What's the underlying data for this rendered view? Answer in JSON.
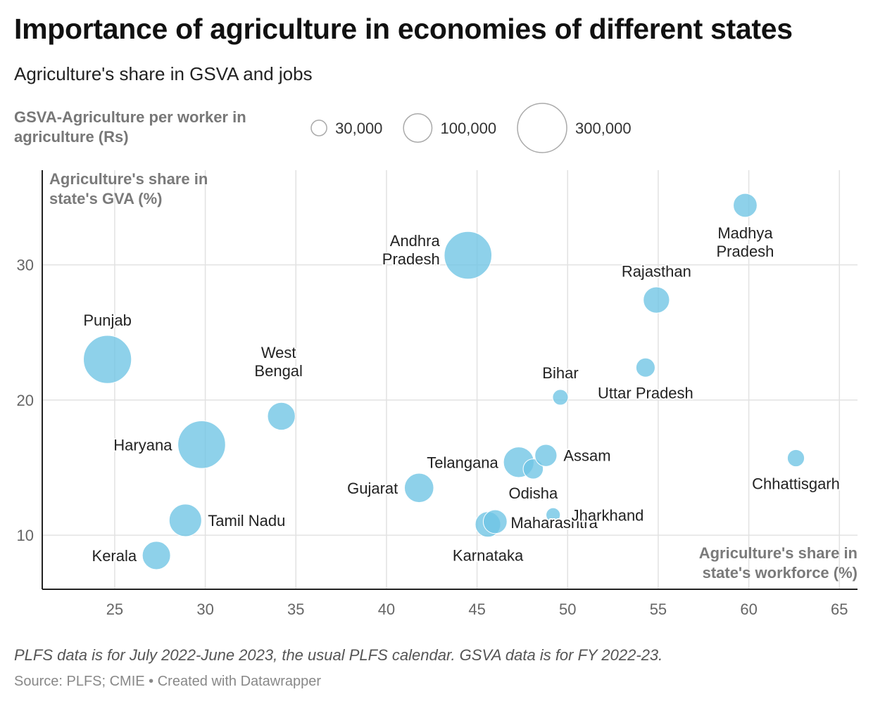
{
  "header": {
    "title": "Importance of agriculture in economies of different states",
    "subtitle": "Agriculture's share in GSVA and jobs"
  },
  "size_legend": {
    "title": "GSVA-Agriculture per worker in agriculture (Rs)",
    "items": [
      {
        "value": 30000,
        "label": "30,000"
      },
      {
        "value": 100000,
        "label": "100,000"
      },
      {
        "value": 300000,
        "label": "300,000"
      }
    ]
  },
  "chart_data": {
    "type": "scatter",
    "xlabel": "Agriculture's share in state's workforce (%)",
    "ylabel": "Agriculture's share in state's GVA (%)",
    "size_label": "GSVA-Agriculture per worker in agriculture (Rs)",
    "xlim": [
      21,
      66
    ],
    "ylim": [
      6,
      37
    ],
    "xticks": [
      25,
      30,
      35,
      40,
      45,
      50,
      55,
      60,
      65
    ],
    "yticks": [
      10,
      20,
      30
    ],
    "grid": true,
    "color": "#6ec4e4",
    "points": [
      {
        "name": "Punjab",
        "x": 24.6,
        "y": 23.0,
        "size": 285000
      },
      {
        "name": "Haryana",
        "x": 29.8,
        "y": 16.7,
        "size": 280000
      },
      {
        "name": "Tamil Nadu",
        "x": 28.9,
        "y": 11.1,
        "size": 130000
      },
      {
        "name": "Kerala",
        "x": 27.3,
        "y": 8.5,
        "size": 98000
      },
      {
        "name": "West Bengal",
        "x": 34.2,
        "y": 18.8,
        "size": 95000
      },
      {
        "name": "Andhra Pradesh",
        "x": 44.5,
        "y": 30.7,
        "size": 280000
      },
      {
        "name": "Gujarat",
        "x": 41.8,
        "y": 13.5,
        "size": 106000
      },
      {
        "name": "Telangana",
        "x": 47.3,
        "y": 15.4,
        "size": 115000
      },
      {
        "name": "Karnataka",
        "x": 45.6,
        "y": 10.8,
        "size": 80000
      },
      {
        "name": "Maharashtra",
        "x": 46.0,
        "y": 11.0,
        "size": 70000
      },
      {
        "name": "Odisha",
        "x": 48.1,
        "y": 14.9,
        "size": 50000
      },
      {
        "name": "Assam",
        "x": 48.8,
        "y": 15.9,
        "size": 60000
      },
      {
        "name": "Jharkhand",
        "x": 49.2,
        "y": 11.5,
        "size": 25000
      },
      {
        "name": "Bihar",
        "x": 49.6,
        "y": 20.2,
        "size": 30000
      },
      {
        "name": "Uttar Pradesh",
        "x": 54.3,
        "y": 22.4,
        "size": 45000
      },
      {
        "name": "Rajasthan",
        "x": 54.9,
        "y": 27.4,
        "size": 85000
      },
      {
        "name": "Madhya Pradesh",
        "x": 59.8,
        "y": 34.4,
        "size": 70000
      },
      {
        "name": "Chhattisgarh",
        "x": 62.6,
        "y": 15.7,
        "size": 36000
      }
    ],
    "point_labels": [
      {
        "name": "Punjab",
        "lines": [
          "Punjab"
        ]
      },
      {
        "name": "Haryana",
        "lines": [
          "Haryana"
        ]
      },
      {
        "name": "Tamil Nadu",
        "lines": [
          "Tamil Nadu"
        ]
      },
      {
        "name": "Kerala",
        "lines": [
          "Kerala"
        ]
      },
      {
        "name": "West Bengal",
        "lines": [
          "West",
          "Bengal"
        ]
      },
      {
        "name": "Andhra Pradesh",
        "lines": [
          "Andhra",
          "Pradesh"
        ]
      },
      {
        "name": "Gujarat",
        "lines": [
          "Gujarat"
        ]
      },
      {
        "name": "Telangana",
        "lines": [
          "Telangana"
        ]
      },
      {
        "name": "Karnataka",
        "lines": [
          "Karnataka"
        ]
      },
      {
        "name": "Maharashtra",
        "lines": [
          "Maharashtra"
        ]
      },
      {
        "name": "Odisha",
        "lines": [
          "Odisha"
        ]
      },
      {
        "name": "Assam",
        "lines": [
          "Assam"
        ]
      },
      {
        "name": "Jharkhand",
        "lines": [
          "Jharkhand"
        ]
      },
      {
        "name": "Bihar",
        "lines": [
          "Bihar"
        ]
      },
      {
        "name": "Uttar Pradesh",
        "lines": [
          "Uttar Pradesh"
        ]
      },
      {
        "name": "Rajasthan",
        "lines": [
          "Rajasthan"
        ]
      },
      {
        "name": "Madhya Pradesh",
        "lines": [
          "Madhya",
          "Pradesh"
        ]
      },
      {
        "name": "Chhattisgarh",
        "lines": [
          "Chhattisgarh"
        ]
      }
    ]
  },
  "footer": {
    "note": "PLFS data is for July 2022-June 2023, the usual PLFS calendar. GSVA data is for FY 2022-23.",
    "source": "Source: PLFS; CMIE • Created with Datawrapper"
  }
}
